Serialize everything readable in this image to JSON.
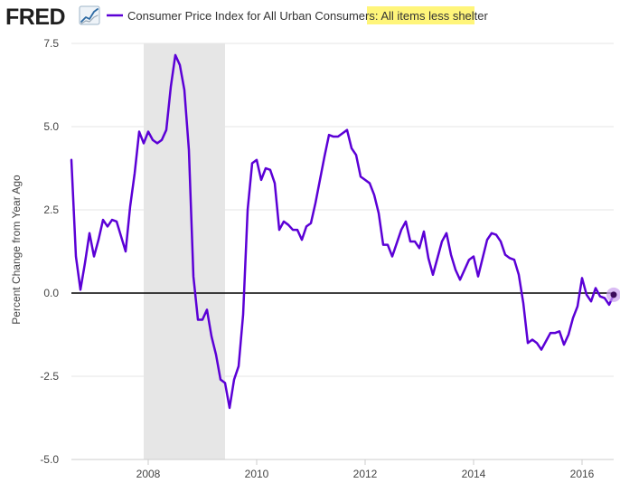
{
  "header": {
    "logo_text": "FRED",
    "legend_prefix": "Consumer Price Index for All Urban Consumers:",
    "legend_highlight": "All items less shelter"
  },
  "colors": {
    "series": "#5b00d6",
    "recession_shade": "#e6e6e6",
    "zero_line": "#000000",
    "grid": "#e6e6e6",
    "tick_text": "#444444",
    "highlight_bg": "#fff57a",
    "logo_dark": "#1f1f1f",
    "marker_halo": "#c9a0ee"
  },
  "chart_data": {
    "type": "line",
    "title": "",
    "ylabel": "Percent Change from Year Ago",
    "xlabel": "",
    "ylim": [
      -5.0,
      7.5
    ],
    "yticks": [
      -5.0,
      -2.5,
      0.0,
      2.5,
      5.0,
      7.5
    ],
    "ytick_labels": [
      "-5.0",
      "-2.5",
      "0.0",
      "2.5",
      "5.0",
      "7.5"
    ],
    "xlim": [
      "2006-08",
      "2016-08"
    ],
    "xticks": [
      "2008",
      "2010",
      "2012",
      "2014",
      "2016"
    ],
    "recessions": [
      {
        "start": "2007-12",
        "end": "2009-06"
      }
    ],
    "grid": true,
    "legend_position": "top-left",
    "series": [
      {
        "name": "Consumer Price Index for All Urban Consumers: All items less shelter",
        "x": [
          "2006-08",
          "2006-09",
          "2006-10",
          "2006-11",
          "2006-12",
          "2007-01",
          "2007-02",
          "2007-03",
          "2007-04",
          "2007-05",
          "2007-06",
          "2007-07",
          "2007-08",
          "2007-09",
          "2007-10",
          "2007-11",
          "2007-12",
          "2008-01",
          "2008-02",
          "2008-03",
          "2008-04",
          "2008-05",
          "2008-06",
          "2008-07",
          "2008-08",
          "2008-09",
          "2008-10",
          "2008-11",
          "2008-12",
          "2009-01",
          "2009-02",
          "2009-03",
          "2009-04",
          "2009-05",
          "2009-06",
          "2009-07",
          "2009-08",
          "2009-09",
          "2009-10",
          "2009-11",
          "2009-12",
          "2010-01",
          "2010-02",
          "2010-03",
          "2010-04",
          "2010-05",
          "2010-06",
          "2010-07",
          "2010-08",
          "2010-09",
          "2010-10",
          "2010-11",
          "2010-12",
          "2011-01",
          "2011-02",
          "2011-03",
          "2011-04",
          "2011-05",
          "2011-06",
          "2011-07",
          "2011-08",
          "2011-09",
          "2011-10",
          "2011-11",
          "2011-12",
          "2012-01",
          "2012-02",
          "2012-03",
          "2012-04",
          "2012-05",
          "2012-06",
          "2012-07",
          "2012-08",
          "2012-09",
          "2012-10",
          "2012-11",
          "2012-12",
          "2013-01",
          "2013-02",
          "2013-03",
          "2013-04",
          "2013-05",
          "2013-06",
          "2013-07",
          "2013-08",
          "2013-09",
          "2013-10",
          "2013-11",
          "2013-12",
          "2014-01",
          "2014-02",
          "2014-03",
          "2014-04",
          "2014-05",
          "2014-06",
          "2014-07",
          "2014-08",
          "2014-09",
          "2014-10",
          "2014-11",
          "2014-12",
          "2015-01",
          "2015-02",
          "2015-03",
          "2015-04",
          "2015-05",
          "2015-06",
          "2015-07",
          "2015-08",
          "2015-09",
          "2015-10",
          "2015-11",
          "2015-12",
          "2016-01",
          "2016-02",
          "2016-03",
          "2016-04",
          "2016-05",
          "2016-06",
          "2016-07",
          "2016-08"
        ],
        "values": [
          4.0,
          1.1,
          0.1,
          0.9,
          1.8,
          1.1,
          1.6,
          2.2,
          2.0,
          2.2,
          2.15,
          1.7,
          1.25,
          2.6,
          3.6,
          4.85,
          4.5,
          4.85,
          4.6,
          4.5,
          4.6,
          4.9,
          6.2,
          7.15,
          6.85,
          6.1,
          4.3,
          0.5,
          -0.8,
          -0.8,
          -0.5,
          -1.3,
          -1.85,
          -2.6,
          -2.7,
          -3.45,
          -2.6,
          -2.2,
          -0.65,
          2.5,
          3.9,
          4.0,
          3.4,
          3.75,
          3.7,
          3.3,
          1.9,
          2.15,
          2.05,
          1.9,
          1.9,
          1.6,
          2.0,
          2.1,
          2.7,
          3.4,
          4.1,
          4.75,
          4.7,
          4.7,
          4.8,
          4.9,
          4.35,
          4.15,
          3.5,
          3.4,
          3.3,
          2.95,
          2.4,
          1.45,
          1.45,
          1.1,
          1.5,
          1.9,
          2.15,
          1.55,
          1.55,
          1.35,
          1.85,
          1.05,
          0.55,
          1.05,
          1.55,
          1.8,
          1.15,
          0.7,
          0.4,
          0.7,
          1.0,
          1.1,
          0.5,
          1.05,
          1.6,
          1.8,
          1.75,
          1.55,
          1.15,
          1.05,
          1.0,
          0.55,
          -0.3,
          -1.5,
          -1.4,
          -1.5,
          -1.7,
          -1.45,
          -1.2,
          -1.2,
          -1.15,
          -1.55,
          -1.25,
          -0.75,
          -0.4,
          0.45,
          -0.05,
          -0.25,
          0.15,
          -0.1,
          -0.15,
          -0.35,
          -0.05
        ]
      }
    ]
  }
}
